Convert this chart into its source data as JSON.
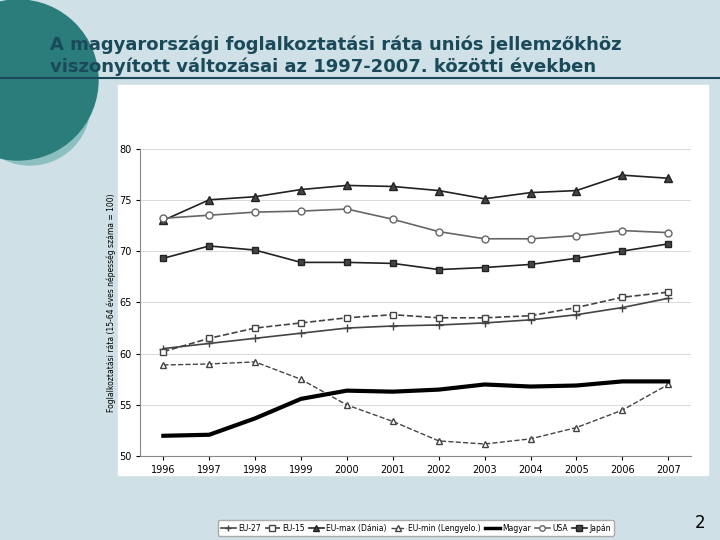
{
  "title_line1": "A magyarországi foglalkoztatási ráta uniós jellemzőkhöz",
  "title_line2": "viszonyított változásai az 1997-2007. közötti években",
  "ylabel": "Foglalkoztatási ráta (15-64 éves népesség száma = 100)",
  "years": [
    1996,
    1997,
    1998,
    1999,
    2000,
    2001,
    2002,
    2003,
    2004,
    2005,
    2006,
    2007
  ],
  "ylim": [
    50,
    80
  ],
  "yticks": [
    50,
    55,
    60,
    65,
    70,
    75,
    80
  ],
  "slide_bg": "#cfe0e6",
  "title_color": "#1a4a5a",
  "line_color": "#1a4a5a",
  "series": {
    "EU-27": {
      "values": [
        60.5,
        61.0,
        61.5,
        62.0,
        62.5,
        62.7,
        62.8,
        63.0,
        63.3,
        63.8,
        64.5,
        65.4
      ],
      "marker": "+",
      "linestyle": "-",
      "color": "#444444",
      "linewidth": 1.2,
      "markersize": 6,
      "markerfacecolor": "#444444",
      "label": "EU-27"
    },
    "EU-15": {
      "values": [
        60.2,
        61.5,
        62.5,
        63.0,
        63.5,
        63.8,
        63.5,
        63.5,
        63.7,
        64.5,
        65.5,
        66.0
      ],
      "marker": "s",
      "linestyle": "--",
      "color": "#444444",
      "linewidth": 1.2,
      "markersize": 5,
      "markerfacecolor": "white",
      "label": "EU-15"
    },
    "EU-max (Dánia)": {
      "values": [
        73.0,
        75.0,
        75.3,
        76.0,
        76.4,
        76.3,
        75.9,
        75.1,
        75.7,
        75.9,
        77.4,
        77.1
      ],
      "marker": "^",
      "linestyle": "-",
      "color": "#222222",
      "linewidth": 1.2,
      "markersize": 6,
      "markerfacecolor": "#444444",
      "label": "EU-max (Dánia)"
    },
    "EU-min (Lengyelo.)": {
      "values": [
        58.9,
        59.0,
        59.2,
        57.5,
        55.0,
        53.4,
        51.5,
        51.2,
        51.7,
        52.8,
        54.5,
        57.0
      ],
      "marker": "^",
      "linestyle": "--",
      "color": "#444444",
      "linewidth": 1.0,
      "markersize": 5,
      "markerfacecolor": "white",
      "label": "EU-min (Lengyelo.)"
    },
    "Magyar": {
      "values": [
        52.0,
        52.1,
        53.7,
        55.6,
        56.4,
        56.3,
        56.5,
        57.0,
        56.8,
        56.9,
        57.3,
        57.3
      ],
      "marker": "None",
      "linestyle": "-",
      "color": "#000000",
      "linewidth": 3.0,
      "markersize": 0,
      "markerfacecolor": "#000000",
      "label": "Magyar"
    },
    "USA": {
      "values": [
        73.2,
        73.5,
        73.8,
        73.9,
        74.1,
        73.1,
        71.9,
        71.2,
        71.2,
        71.5,
        72.0,
        71.8
      ],
      "marker": "o",
      "linestyle": "-",
      "color": "#666666",
      "linewidth": 1.2,
      "markersize": 5,
      "markerfacecolor": "white",
      "label": "USA"
    },
    "Japán": {
      "values": [
        69.3,
        70.5,
        70.1,
        68.9,
        68.9,
        68.8,
        68.2,
        68.4,
        68.7,
        69.3,
        70.0,
        70.7
      ],
      "marker": "s",
      "linestyle": "-",
      "color": "#222222",
      "linewidth": 1.2,
      "markersize": 5,
      "markerfacecolor": "#444444",
      "label": "Japán"
    }
  },
  "page_number": "2",
  "circle1_color": "#2a7d7b",
  "circle2_color": "#8bbfc0"
}
